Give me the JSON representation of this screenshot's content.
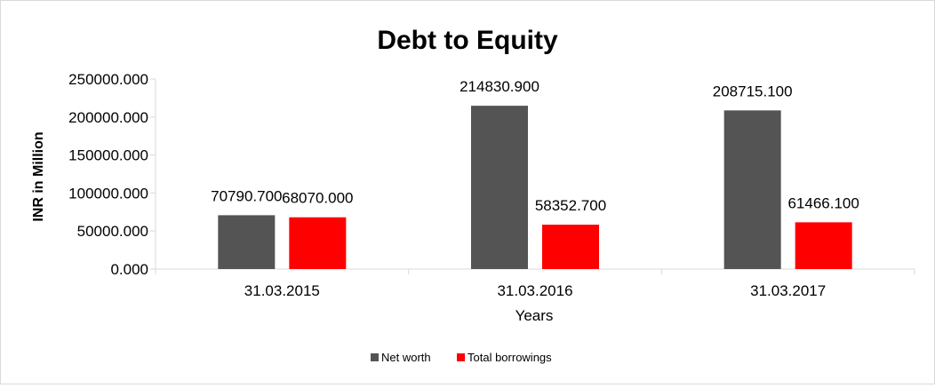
{
  "chart_data": {
    "type": "bar",
    "title": "Debt to Equity",
    "xlabel": "Years",
    "ylabel": "INR in Million",
    "categories": [
      "31.03.2015",
      "31.03.2016",
      "31.03.2017"
    ],
    "series": [
      {
        "name": "Net worth",
        "color": "#545454",
        "values": [
          70790.7,
          214830.9,
          208715.1
        ],
        "labels": [
          "70790.700",
          "214830.900",
          "208715.100"
        ]
      },
      {
        "name": "Total borrowings",
        "color": "#ff0000",
        "values": [
          68070.0,
          58352.7,
          61466.1
        ],
        "labels": [
          "68070.000",
          "58352.700",
          "61466.100"
        ]
      }
    ],
    "ylim": [
      0,
      250000
    ],
    "yticks": [
      0,
      50000,
      100000,
      150000,
      200000,
      250000
    ],
    "ytick_labels": [
      "0.000",
      "50000.000",
      "100000.000",
      "150000.000",
      "200000.000",
      "250000.000"
    ],
    "grid": false,
    "legend": "bottom"
  }
}
